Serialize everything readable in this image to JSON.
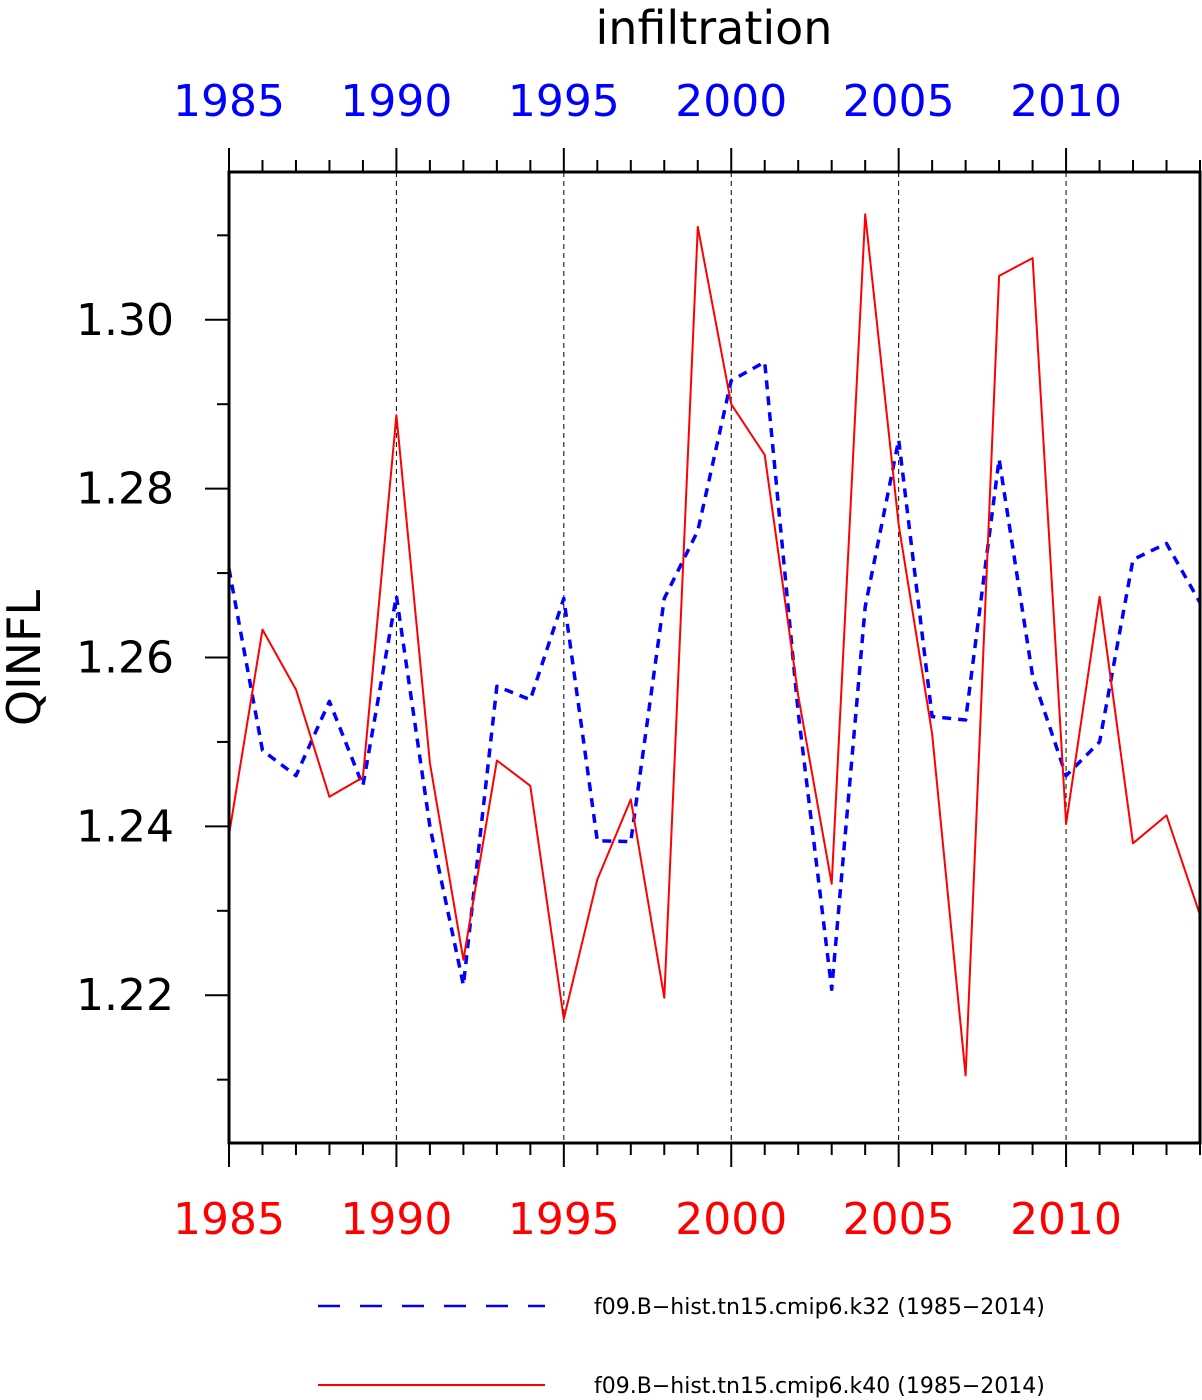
{
  "chart_data": {
    "type": "line",
    "title": "infiltration",
    "ylabel": "QINFL",
    "xlabel": "",
    "xlim": [
      1985,
      2014
    ],
    "ylim": [
      1.2025,
      1.3175
    ],
    "x_major_ticks": [
      1985,
      1990,
      1995,
      2000,
      2005,
      2010
    ],
    "x_tick_labels": [
      "1985",
      "1990",
      "1995",
      "2000",
      "2005",
      "2010"
    ],
    "y_major_ticks": [
      1.22,
      1.24,
      1.26,
      1.28,
      1.3
    ],
    "y_tick_labels": [
      "1.22",
      "1.24",
      "1.26",
      "1.28",
      "1.30"
    ],
    "grid": "vertical dashed lines at major x ticks",
    "legend_position": "bottom",
    "colors": {
      "top_axis": "#0000ff",
      "bottom_axis": "#ff0000"
    },
    "x": [
      1985,
      1986,
      1987,
      1988,
      1989,
      1990,
      1991,
      1992,
      1993,
      1994,
      1995,
      1996,
      1997,
      1998,
      1999,
      2000,
      2001,
      2002,
      2003,
      2004,
      2005,
      2006,
      2007,
      2008,
      2009,
      2010,
      2011,
      2012,
      2013,
      2014
    ],
    "series": [
      {
        "name": "f09.B−hist.tn15.cmip6.k32 (1985−2014)",
        "color": "#0000ff",
        "style": "dashed",
        "values": [
          1.2705,
          1.249,
          1.246,
          1.2548,
          1.2448,
          1.2673,
          1.24,
          1.2212,
          1.2566,
          1.255,
          1.267,
          1.2383,
          1.2382,
          1.267,
          1.275,
          1.2928,
          1.295,
          1.2535,
          1.2207,
          1.266,
          1.2858,
          1.253,
          1.2526,
          1.2835,
          1.2578,
          1.246,
          1.25,
          1.2716,
          1.2735,
          1.2665
        ]
      },
      {
        "name": "f09.B−hist.tn15.cmip6.k40 (1985−2014)",
        "color": "#ff0000",
        "style": "solid",
        "values": [
          1.239,
          1.2633,
          1.2562,
          1.2435,
          1.2458,
          1.2887,
          1.2475,
          1.2242,
          1.2478,
          1.2448,
          1.2172,
          1.2337,
          1.2432,
          1.2197,
          1.311,
          1.29,
          1.284,
          1.2555,
          1.2332,
          1.3125,
          1.2757,
          1.251,
          1.2105,
          1.3052,
          1.3073,
          1.2403,
          1.2672,
          1.238,
          1.2413,
          1.2295
        ]
      }
    ]
  }
}
